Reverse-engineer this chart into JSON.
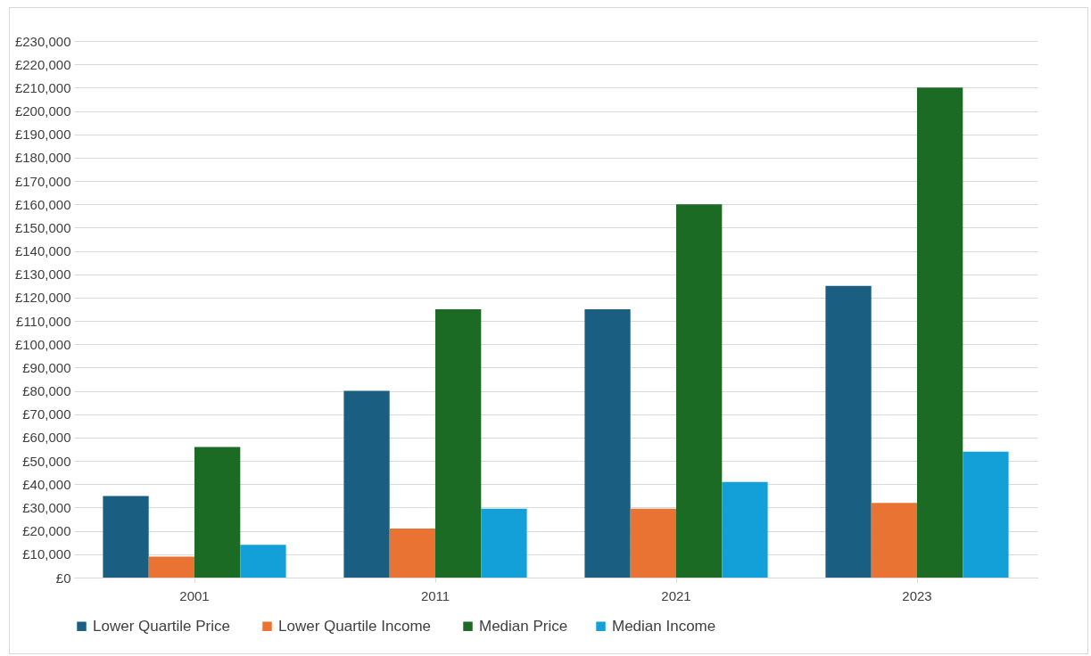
{
  "chart_data": {
    "type": "bar",
    "categories": [
      "2001",
      "2011",
      "2021",
      "2023"
    ],
    "series": [
      {
        "name": "Lower  Quartile Price",
        "color": "#1a5e82",
        "values": [
          35000,
          80000,
          115000,
          125000
        ]
      },
      {
        "name": "Lower  Quartile Income",
        "color": "#e87332",
        "values": [
          9000,
          21000,
          29500,
          32000
        ]
      },
      {
        "name": "Median Price",
        "color": "#1b6b25",
        "values": [
          56000,
          115000,
          160000,
          210000
        ]
      },
      {
        "name": "Median Income",
        "color": "#13a0d8",
        "values": [
          14000,
          29500,
          41000,
          54000
        ]
      }
    ],
    "ylim": [
      0,
      230000
    ],
    "yticks": [
      {
        "value": 0,
        "label": "£0"
      },
      {
        "value": 10000,
        "label": "£10,000"
      },
      {
        "value": 20000,
        "label": "£20,000"
      },
      {
        "value": 30000,
        "label": "£30,000"
      },
      {
        "value": 40000,
        "label": "£40,000"
      },
      {
        "value": 50000,
        "label": "£50,000"
      },
      {
        "value": 60000,
        "label": "£60,000"
      },
      {
        "value": 70000,
        "label": "£70,000"
      },
      {
        "value": 80000,
        "label": "£80,000"
      },
      {
        "value": 90000,
        "label": "£90,000"
      },
      {
        "value": 100000,
        "label": "£100,000"
      },
      {
        "value": 110000,
        "label": "£110,000"
      },
      {
        "value": 120000,
        "label": "£120,000"
      },
      {
        "value": 130000,
        "label": "£130,000"
      },
      {
        "value": 140000,
        "label": "£140,000"
      },
      {
        "value": 150000,
        "label": "£150,000"
      },
      {
        "value": 160000,
        "label": "£160,000"
      },
      {
        "value": 170000,
        "label": "£170,000"
      },
      {
        "value": 180000,
        "label": "£180,000"
      },
      {
        "value": 190000,
        "label": "£190,000"
      },
      {
        "value": 200000,
        "label": "£200,000"
      },
      {
        "value": 210000,
        "label": "£210,000"
      },
      {
        "value": 220000,
        "label": "£220,000"
      },
      {
        "value": 230000,
        "label": "£230,000"
      }
    ],
    "grid": "y",
    "legend": "bottom"
  }
}
